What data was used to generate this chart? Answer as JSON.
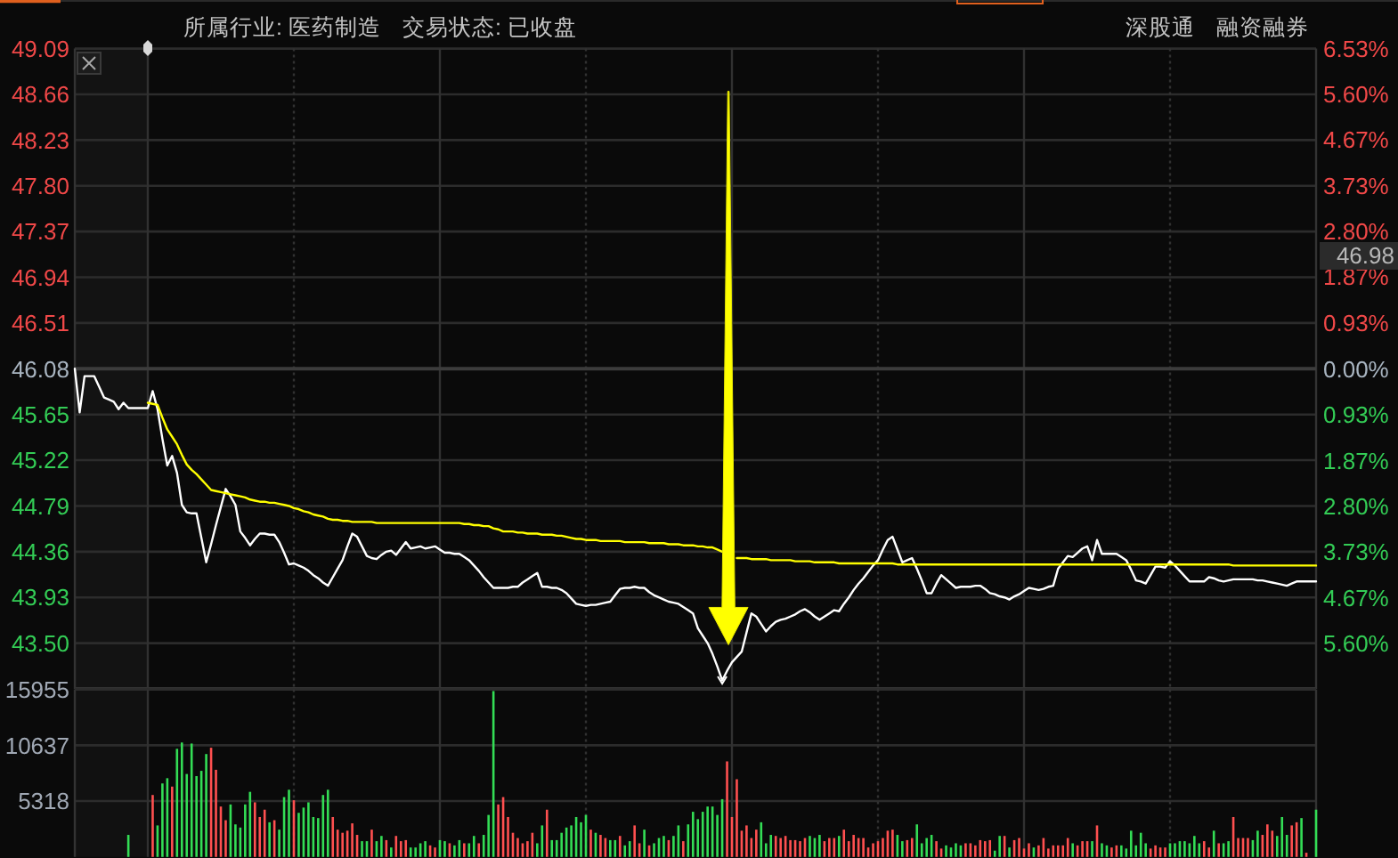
{
  "chart_data": [
    {
      "type": "line",
      "annotations": [
        "所属行业: 医药制造",
        "交易状态: 已收盘",
        "深股通",
        "融资融券",
        "46.98"
      ],
      "categories": [
        null,
        null,
        null,
        null,
        null,
        null,
        null,
        null,
        null,
        null,
        null,
        null,
        null,
        null,
        null,
        null,
        null,
        null,
        null,
        null,
        null,
        null,
        null,
        null,
        null,
        null,
        null,
        null,
        null,
        null,
        null,
        null,
        null,
        null,
        null,
        null,
        null,
        null,
        null,
        null,
        null,
        null,
        null,
        null,
        null,
        null,
        null,
        null,
        null,
        null,
        null,
        null,
        null,
        null,
        null,
        null,
        null,
        null,
        null,
        null,
        null,
        null,
        null,
        null,
        null,
        null,
        null,
        null,
        null,
        null,
        null,
        null,
        null,
        null,
        null,
        null,
        null,
        null,
        null,
        null,
        null,
        null,
        null,
        null,
        null,
        null,
        null,
        null,
        null,
        null,
        null,
        null,
        null,
        null,
        null,
        null,
        null,
        null,
        null,
        null,
        null,
        null,
        null,
        null,
        null,
        null,
        null,
        null,
        null,
        null,
        null,
        null,
        null,
        null,
        null,
        null,
        null,
        null,
        null,
        null,
        null,
        null,
        null,
        null,
        null,
        null,
        null,
        null,
        null,
        null,
        null,
        null,
        null,
        null,
        null,
        null,
        null,
        null,
        null,
        null,
        null,
        null,
        null,
        null,
        null,
        null,
        null,
        null,
        null,
        null,
        null,
        null,
        null,
        null,
        null,
        null,
        null,
        null,
        null,
        null,
        null,
        null,
        null,
        null,
        null,
        null,
        null,
        null,
        null,
        null,
        null,
        null,
        null,
        null,
        null,
        null,
        null,
        null,
        null,
        null,
        null,
        null,
        null,
        null,
        null,
        null,
        null,
        null,
        null,
        null,
        null,
        null,
        null,
        null,
        null,
        null,
        null,
        null,
        null,
        null,
        null,
        null,
        null,
        null,
        null,
        null,
        null,
        null,
        null,
        null,
        null,
        null,
        null,
        null,
        null,
        null,
        null,
        null,
        null,
        null,
        null,
        null,
        null,
        null,
        null,
        null,
        null,
        null,
        null,
        null,
        null,
        null,
        null,
        null,
        null,
        null,
        null,
        null,
        null,
        null,
        null,
        null,
        null,
        null,
        null,
        null,
        null,
        null,
        null,
        null,
        null,
        null,
        null,
        null,
        null,
        null
      ],
      "ylim": [
        43.07,
        49.09
      ],
      "yticks": [
        49.09,
        48.66,
        48.23,
        {
          "value": 47.8,
          "label": "47.80"
        },
        47.37,
        46.94,
        46.51,
        46.08,
        45.65,
        45.22,
        44.79,
        44.36,
        43.93,
        {
          "value": 43.5,
          "label": "43.50"
        }
      ],
      "y2lim": [
        -6.53,
        6.53
      ],
      "y2ticks": [
        {
          "value": 6.53,
          "label": "6.53%"
        },
        {
          "value": 5.6,
          "label": "5.60%"
        },
        {
          "value": 4.67,
          "label": "4.67%"
        },
        {
          "value": 3.73,
          "label": "3.73%"
        },
        {
          "value": 2.8,
          "label": "2.80%"
        },
        {
          "value": 1.87,
          "label": "1.87%"
        },
        {
          "value": 0.93,
          "label": "0.93%"
        },
        {
          "value": 0,
          "label": "0.00%"
        },
        {
          "value": -0.93,
          "label": "0.93%"
        },
        {
          "value": -1.87,
          "label": "1.87%"
        },
        {
          "value": -2.8,
          "label": "2.80%"
        },
        {
          "value": -3.73,
          "label": "3.73%"
        },
        {
          "value": -4.67,
          "label": "4.67%"
        },
        {
          "value": -5.6,
          "label": "5.60%"
        }
      ],
      "grid": true,
      "ref_lines": [
        {
          "axis": "y",
          "value": 46.08,
          "color": "#3c3c3c"
        }
      ],
      "series": [
        {
          "color": "#ffffff",
          "values": [
            46.08,
            45.67,
            46.01,
            46.01,
            46.01,
            45.91,
            45.81,
            45.79,
            45.77,
            45.7,
            45.76,
            45.71,
            45.71,
            45.71,
            45.71,
            45.71,
            45.87,
            45.7,
            45.42,
            45.17,
            45.26,
            45.1,
            44.8,
            44.73,
            44.72,
            44.72,
            44.49,
            44.26,
            44.43,
            44.61,
            44.78,
            44.95,
            44.88,
            44.8,
            44.55,
            44.49,
            44.42,
            44.48,
            44.53,
            44.53,
            44.52,
            44.52,
            44.45,
            44.35,
            44.24,
            44.25,
            44.23,
            44.21,
            44.18,
            44.14,
            44.11,
            44.07,
            44.04,
            44.12,
            44.2,
            44.28,
            44.41,
            44.53,
            44.5,
            44.41,
            44.32,
            44.3,
            44.29,
            44.33,
            44.36,
            44.37,
            44.33,
            44.39,
            44.45,
            44.39,
            44.4,
            44.41,
            44.39,
            44.4,
            44.41,
            44.38,
            44.35,
            44.35,
            44.34,
            44.34,
            44.31,
            44.28,
            44.23,
            44.18,
            44.12,
            44.07,
            44.02,
            44.02,
            44.02,
            44.02,
            44.03,
            44.03,
            44.07,
            44.1,
            44.13,
            44.16,
            44.03,
            44.03,
            44.02,
            44.02,
            44.0,
            43.97,
            43.92,
            43.87,
            43.86,
            43.85,
            43.86,
            43.86,
            43.87,
            43.88,
            43.89,
            43.95,
            44.01,
            44.02,
            44.02,
            44.03,
            44.02,
            44.02,
            43.98,
            43.95,
            43.93,
            43.91,
            43.89,
            43.88,
            43.87,
            43.84,
            43.81,
            43.78,
            43.64,
            43.57,
            43.5,
            43.4,
            43.28,
            43.15,
            43.24,
            43.32,
            43.37,
            43.42,
            43.6,
            43.78,
            43.75,
            43.68,
            43.61,
            43.66,
            43.7,
            43.72,
            43.73,
            43.75,
            43.77,
            43.8,
            43.82,
            43.79,
            43.75,
            43.72,
            43.75,
            43.78,
            43.81,
            43.8,
            43.87,
            43.93,
            44.0,
            44.06,
            44.11,
            44.17,
            44.23,
            44.28,
            44.38,
            44.47,
            44.5,
            44.38,
            44.26,
            44.28,
            44.3,
            44.2,
            44.09,
            43.97,
            43.97,
            44.06,
            44.14,
            44.1,
            44.06,
            44.02,
            44.03,
            44.03,
            44.03,
            44.04,
            44.04,
            44.01,
            43.97,
            43.96,
            43.94,
            43.93,
            43.91,
            43.94,
            43.96,
            43.99,
            44.02,
            44.01,
            44.0,
            44.01,
            44.03,
            44.04,
            44.2,
            44.26,
            44.32,
            44.31,
            44.35,
            44.39,
            44.41,
            44.28,
            44.47,
            44.34,
            44.34,
            44.34,
            44.34,
            44.31,
            44.28,
            44.19,
            44.09,
            44.08,
            44.06,
            44.14,
            44.22,
            44.22,
            44.21,
            44.27,
            44.23,
            44.18,
            44.13,
            44.08,
            44.08,
            44.08,
            44.08,
            44.12,
            44.11,
            44.09,
            44.08,
            44.09,
            44.1,
            44.1,
            44.1,
            44.1,
            44.1,
            44.09,
            44.09,
            44.08,
            44.07,
            44.06,
            44.05,
            44.04,
            44.06,
            44.08,
            44.08,
            44.08,
            44.08,
            44.08
          ]
        },
        {
          "color": "#ffff00",
          "values": [
            null,
            null,
            null,
            null,
            null,
            null,
            null,
            null,
            null,
            null,
            null,
            null,
            null,
            null,
            null,
            45.76,
            45.75,
            45.74,
            45.62,
            45.51,
            45.44,
            45.37,
            45.27,
            45.18,
            45.13,
            45.09,
            45.04,
            44.99,
            44.94,
            44.93,
            44.92,
            44.91,
            44.9,
            44.89,
            44.88,
            44.87,
            44.85,
            44.84,
            44.83,
            44.83,
            44.82,
            44.82,
            44.81,
            44.8,
            44.79,
            44.77,
            44.76,
            44.74,
            44.73,
            44.71,
            44.7,
            44.69,
            44.67,
            44.66,
            44.66,
            44.65,
            44.65,
            44.64,
            44.64,
            44.64,
            44.64,
            44.64,
            44.63,
            44.63,
            44.63,
            44.63,
            44.63,
            44.63,
            44.63,
            44.63,
            44.63,
            44.63,
            44.63,
            44.63,
            44.63,
            44.63,
            44.63,
            44.63,
            44.63,
            44.63,
            44.62,
            44.62,
            44.61,
            44.61,
            44.6,
            44.6,
            44.58,
            44.57,
            44.55,
            44.55,
            44.55,
            44.54,
            44.54,
            44.53,
            44.53,
            44.53,
            44.52,
            44.52,
            44.52,
            44.51,
            44.51,
            44.5,
            44.49,
            44.48,
            44.48,
            44.47,
            44.47,
            44.47,
            44.46,
            44.46,
            44.46,
            44.46,
            44.46,
            44.45,
            44.45,
            44.45,
            44.45,
            44.45,
            44.44,
            44.44,
            44.44,
            44.44,
            44.43,
            44.43,
            44.43,
            44.42,
            44.42,
            44.42,
            44.41,
            44.41,
            44.4,
            44.4,
            44.38,
            44.36,
            null,
            null,
            44.3,
            44.3,
            44.3,
            44.29,
            44.29,
            44.29,
            44.29,
            44.28,
            44.28,
            44.28,
            44.28,
            44.28,
            44.27,
            44.27,
            44.27,
            44.27,
            44.26,
            44.26,
            44.26,
            44.26,
            44.26,
            44.25,
            44.25,
            44.25,
            44.25,
            44.25,
            44.25,
            44.25,
            44.25,
            44.25,
            44.25,
            44.25,
            44.25,
            44.24,
            44.24,
            44.24,
            44.24,
            44.24,
            44.24,
            44.24,
            44.24,
            44.24,
            44.24,
            44.24,
            44.24,
            44.24,
            44.24,
            44.24,
            44.24,
            44.24,
            44.24,
            44.24,
            44.24,
            44.24,
            44.24,
            44.24,
            44.24,
            44.24,
            44.24,
            44.24,
            44.24,
            44.24,
            44.24,
            44.24,
            44.24,
            44.24,
            44.24,
            44.24,
            44.24,
            44.24,
            44.24,
            44.24,
            44.24,
            44.24,
            44.24,
            44.24,
            44.24,
            44.24,
            44.24,
            44.24,
            44.24,
            44.24,
            44.24,
            44.24,
            44.24,
            44.24,
            44.24,
            44.24,
            44.24,
            44.24,
            44.24,
            44.24,
            44.24,
            44.24,
            44.24,
            44.24,
            44.24,
            44.24,
            44.24,
            44.24,
            44.24,
            44.24,
            44.23,
            44.23,
            44.23,
            44.23,
            44.23,
            44.23,
            44.23,
            44.23,
            44.23,
            44.23,
            44.23,
            44.23,
            44.23,
            44.23,
            44.23,
            44.23,
            44.23,
            44.23
          ]
        }
      ]
    },
    {
      "type": "bar",
      "categories": [
        null,
        null,
        null,
        null,
        null,
        null,
        null,
        null,
        null,
        null,
        null,
        null,
        null,
        null,
        null,
        null,
        null,
        null,
        null,
        null,
        null,
        null,
        null,
        null,
        null,
        null,
        null,
        null,
        null,
        null,
        null,
        null,
        null,
        null,
        null,
        null,
        null,
        null,
        null,
        null,
        null,
        null,
        null,
        null,
        null,
        null,
        null,
        null,
        null,
        null,
        null,
        null,
        null,
        null,
        null,
        null,
        null,
        null,
        null,
        null,
        null,
        null,
        null,
        null,
        null,
        null,
        null,
        null,
        null,
        null,
        null,
        null,
        null,
        null,
        null,
        null,
        null,
        null,
        null,
        null,
        null,
        null,
        null,
        null,
        null,
        null,
        null,
        null,
        null,
        null,
        null,
        null,
        null,
        null,
        null,
        null,
        null,
        null,
        null,
        null,
        null,
        null,
        null,
        null,
        null,
        null,
        null,
        null,
        null,
        null,
        null,
        null,
        null,
        null,
        null,
        null,
        null,
        null,
        null,
        null,
        null,
        null,
        null,
        null,
        null,
        null,
        null,
        null,
        null,
        null,
        null,
        null,
        null,
        null,
        null,
        null,
        null,
        null,
        null,
        null,
        null,
        null,
        null,
        null,
        null,
        null,
        null,
        null,
        null,
        null,
        null,
        null,
        null,
        null,
        null,
        null,
        null,
        null,
        null,
        null,
        null,
        null,
        null,
        null,
        null,
        null,
        null,
        null,
        null,
        null,
        null,
        null,
        null,
        null,
        null,
        null,
        null,
        null,
        null,
        null,
        null,
        null,
        null,
        null,
        null,
        null,
        null,
        null,
        null,
        null,
        null,
        null,
        null,
        null,
        null,
        null,
        null,
        null,
        null,
        null,
        null,
        null,
        null,
        null,
        null,
        null,
        null,
        null,
        null,
        null,
        null,
        null,
        null,
        null,
        null,
        null,
        null,
        null,
        null,
        null,
        null,
        null,
        null,
        null,
        null,
        null,
        null,
        null,
        null,
        null,
        null,
        null,
        null,
        null,
        null,
        null,
        null,
        null,
        null,
        null,
        null,
        null,
        null,
        null,
        null,
        null,
        null,
        null,
        null,
        null,
        null,
        null,
        null,
        null,
        null,
        null
      ],
      "ylim": [
        0,
        15955
      ],
      "yticks": [
        5318,
        10637,
        15955
      ],
      "grid": true,
      "series": [
        {
          "color": "#ff5050",
          "values": [
            null,
            null,
            null,
            null,
            null,
            null,
            null,
            null,
            null,
            null,
            null,
            null,
            null,
            null,
            null,
            null,
            5900,
            null,
            null,
            null,
            6700,
            null,
            null,
            null,
            null,
            null,
            null,
            null,
            10400,
            8300,
            4800,
            3500,
            null,
            null,
            null,
            null,
            null,
            5200,
            3800,
            4500,
            null,
            3500,
            null,
            null,
            null,
            5400,
            null,
            null,
            null,
            null,
            null,
            null,
            null,
            3800,
            2600,
            2300,
            2500,
            3200,
            2100,
            null,
            null,
            2600,
            null,
            null,
            1600,
            null,
            2000,
            1500,
            1600,
            null,
            null,
            null,
            null,
            1100,
            900,
            null,
            null,
            1300,
            null,
            null,
            1300,
            null,
            null,
            1300,
            null,
            null,
            null,
            5000,
            5700,
            3800,
            2300,
            1800,
            1300,
            1500,
            2300,
            null,
            null,
            4500,
            null,
            null,
            null,
            null,
            null,
            null,
            null,
            null,
            2600,
            null,
            2100,
            1800,
            null,
            null,
            2000,
            null,
            null,
            3000,
            1300,
            null,
            1100,
            null,
            null,
            null,
            1600,
            null,
            null,
            1500,
            null,
            null,
            null,
            null,
            null,
            null,
            null,
            null,
            9100,
            3800,
            7400,
            2500,
            3000,
            1800,
            2600,
            null,
            null,
            null,
            2000,
            1800,
            2000,
            1600,
            1600,
            1500,
            1800,
            null,
            null,
            null,
            1500,
            1800,
            1800,
            null,
            2600,
            1500,
            2100,
            1800,
            1800,
            900,
            1300,
            1500,
            1800,
            2500,
            2600,
            null,
            null,
            1600,
            1800,
            null,
            null,
            null,
            null,
            1500,
            800,
            null,
            null,
            null,
            null,
            1300,
            1300,
            1100,
            1600,
            1500,
            1600,
            null,
            null,
            2000,
            null,
            1600,
            1800,
            800,
            1300,
            null,
            1100,
            1800,
            800,
            1100,
            1100,
            1100,
            1800,
            null,
            1100,
            1500,
            1500,
            null,
            3000,
            null,
            null,
            900,
            1100,
            null,
            null,
            null,
            null,
            null,
            null,
            800,
            1100,
            900,
            900,
            null,
            null,
            null,
            null,
            null,
            null,
            null,
            1500,
            900,
            null,
            1300,
            null,
            null,
            3800,
            1800,
            1800,
            1800,
            null,
            null,
            2100,
            3100,
            2500,
            null,
            null,
            null,
            3000,
            3300,
            null,
            400,
            null,
            null
          ]
        },
        {
          "color": "#33dd55",
          "values": [
            null,
            null,
            null,
            null,
            null,
            null,
            null,
            null,
            null,
            null,
            null,
            2100,
            null,
            null,
            null,
            null,
            null,
            3000,
            7000,
            7500,
            null,
            10300,
            10900,
            7900,
            10800,
            7700,
            8200,
            9800,
            null,
            null,
            null,
            null,
            5000,
            3100,
            2800,
            5000,
            6200,
            null,
            null,
            null,
            3300,
            null,
            2600,
            5700,
            6400,
            null,
            4200,
            4700,
            5200,
            3800,
            3700,
            5900,
            6400,
            null,
            null,
            null,
            null,
            null,
            null,
            1500,
            1500,
            null,
            1500,
            2000,
            null,
            900,
            null,
            null,
            null,
            900,
            900,
            1300,
            1500,
            null,
            null,
            1600,
            1500,
            null,
            1100,
            1600,
            null,
            1300,
            2000,
            null,
            2100,
            4000,
            15800,
            null,
            null,
            null,
            null,
            null,
            null,
            null,
            null,
            1300,
            3000,
            null,
            1600,
            1600,
            2300,
            2800,
            3000,
            3800,
            3300,
            4000,
            null,
            2300,
            null,
            null,
            1600,
            1600,
            null,
            1100,
            1500,
            null,
            null,
            2600,
            null,
            1300,
            1800,
            2000,
            null,
            2000,
            3000,
            null,
            3100,
            4300,
            3600,
            4300,
            4800,
            4800,
            4000,
            5500,
            null,
            null,
            null,
            null,
            null,
            null,
            null,
            3300,
            1300,
            2100,
            null,
            null,
            null,
            null,
            null,
            null,
            null,
            2000,
            1800,
            2100,
            null,
            null,
            null,
            2000,
            null,
            null,
            null,
            null,
            null,
            null,
            null,
            null,
            null,
            null,
            null,
            2100,
            1500,
            null,
            null,
            3100,
            1300,
            1800,
            2100,
            null,
            null,
            1100,
            900,
            1300,
            1100,
            null,
            null,
            null,
            null,
            null,
            null,
            600,
            2000,
            null,
            900,
            null,
            null,
            null,
            null,
            900,
            null,
            null,
            null,
            null,
            null,
            null,
            null,
            1300,
            null,
            null,
            null,
            1500,
            null,
            1300,
            1100,
            null,
            null,
            1100,
            800,
            2500,
            1100,
            2300,
            1300,
            null,
            null,
            null,
            null,
            1300,
            1300,
            1500,
            1500,
            1300,
            2000,
            1300,
            null,
            null,
            2500,
            null,
            1300,
            1500,
            null,
            null,
            null,
            null,
            1600,
            2500,
            null,
            null,
            null,
            2000,
            3800,
            2100,
            null,
            null,
            3700,
            null,
            null,
            4500
          ]
        }
      ]
    }
  ]
}
